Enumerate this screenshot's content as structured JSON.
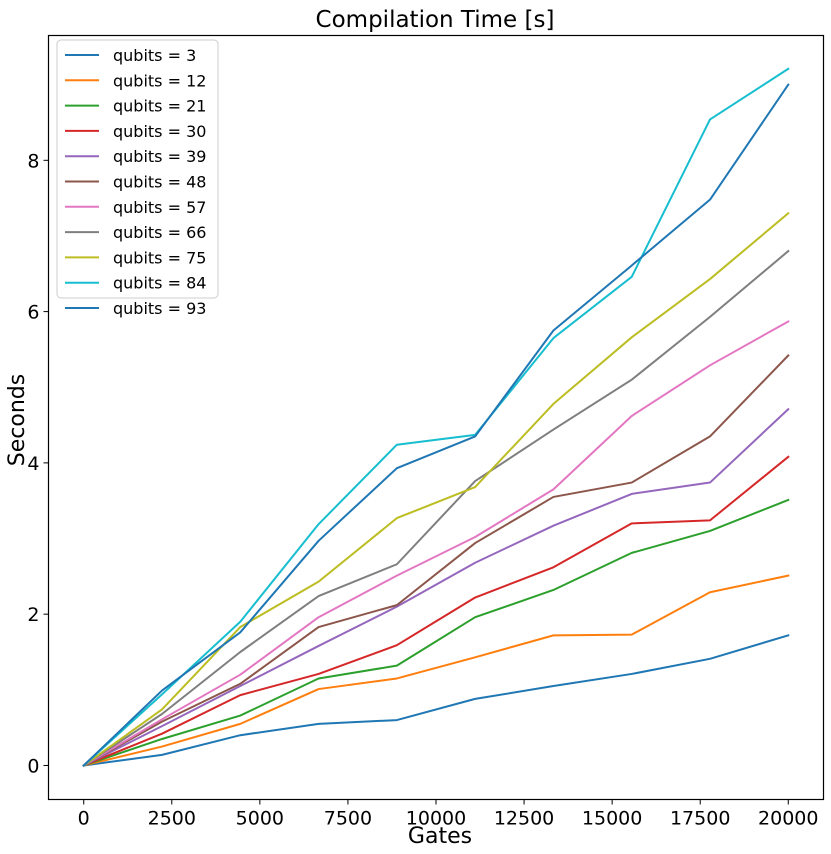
{
  "chart_data": {
    "type": "line",
    "title": "Compilation Time [s]",
    "xlabel": "Gates",
    "ylabel": "Seconds",
    "xlim": [
      -1000,
      21000
    ],
    "ylim": [
      -0.45,
      9.65
    ],
    "x_ticks": [
      0,
      2500,
      5000,
      7500,
      10000,
      12500,
      15000,
      17500,
      20000
    ],
    "x_tick_labels": [
      "0",
      "2500",
      "5000",
      "7500",
      "10000",
      "12500",
      "15000",
      "17500",
      "20000"
    ],
    "y_ticks": [
      0,
      2,
      4,
      6,
      8
    ],
    "y_tick_labels": [
      "0",
      "2",
      "4",
      "6",
      "8"
    ],
    "legend_position": "top-left",
    "x": [
      0,
      2222,
      4444,
      6667,
      8889,
      11111,
      13333,
      15556,
      17778,
      20000
    ],
    "series": [
      {
        "name": "qubits = 3",
        "color": "#1f77b4",
        "values": [
          0,
          0.14,
          0.4,
          0.55,
          0.6,
          0.88,
          1.05,
          1.21,
          1.41,
          1.72
        ]
      },
      {
        "name": "qubits = 12",
        "color": "#ff7f0e",
        "values": [
          0,
          0.25,
          0.55,
          1.01,
          1.15,
          1.43,
          1.72,
          1.73,
          2.29,
          2.51
        ]
      },
      {
        "name": "qubits = 21",
        "color": "#2ca02c",
        "values": [
          0,
          0.35,
          0.66,
          1.15,
          1.32,
          1.96,
          2.32,
          2.81,
          3.1,
          3.51
        ]
      },
      {
        "name": "qubits = 30",
        "color": "#d62728",
        "values": [
          0,
          0.42,
          0.93,
          1.21,
          1.59,
          2.22,
          2.62,
          3.2,
          3.24,
          4.08
        ]
      },
      {
        "name": "qubits = 39",
        "color": "#9467bd",
        "values": [
          0,
          0.52,
          1.05,
          1.58,
          2.1,
          2.68,
          3.17,
          3.59,
          3.74,
          4.71
        ]
      },
      {
        "name": "qubits = 48",
        "color": "#8c564b",
        "values": [
          0,
          0.58,
          1.08,
          1.83,
          2.12,
          2.94,
          3.55,
          3.74,
          4.35,
          5.42
        ]
      },
      {
        "name": "qubits = 57",
        "color": "#e377c2",
        "values": [
          0,
          0.61,
          1.2,
          1.96,
          2.51,
          3.02,
          3.65,
          4.62,
          5.29,
          5.87
        ]
      },
      {
        "name": "qubits = 66",
        "color": "#7f7f7f",
        "values": [
          0,
          0.68,
          1.5,
          2.24,
          2.66,
          3.76,
          4.44,
          5.1,
          5.93,
          6.8
        ]
      },
      {
        "name": "qubits = 75",
        "color": "#bcbd22",
        "values": [
          0,
          0.74,
          1.83,
          2.43,
          3.27,
          3.68,
          4.78,
          5.66,
          6.43,
          7.3
        ]
      },
      {
        "name": "qubits = 84",
        "color": "#17becf",
        "values": [
          0,
          0.94,
          1.9,
          3.19,
          4.24,
          4.37,
          5.65,
          6.46,
          8.54,
          9.21
        ]
      },
      {
        "name": "qubits = 93",
        "color": "#1f77b4",
        "values": [
          0,
          0.99,
          1.76,
          2.97,
          3.93,
          4.35,
          5.75,
          6.61,
          7.48,
          9.0
        ]
      }
    ]
  }
}
